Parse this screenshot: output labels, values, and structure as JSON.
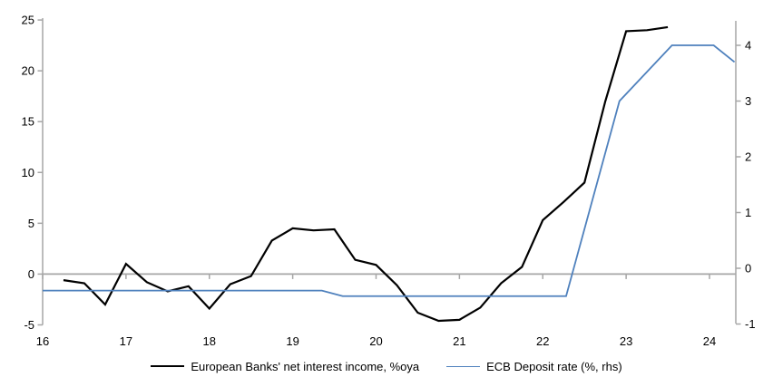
{
  "chart_data": {
    "type": "line",
    "title": "",
    "x_axis": {
      "ticks": [
        16,
        17,
        18,
        19,
        20,
        21,
        22,
        23,
        24
      ],
      "range": [
        16,
        24.31
      ]
    },
    "left_axis": {
      "ticks": [
        -5,
        0,
        5,
        10,
        15,
        20,
        25
      ],
      "range": [
        -5,
        25
      ]
    },
    "right_axis": {
      "ticks": [
        -1,
        0,
        1,
        2,
        3,
        4
      ],
      "range": [
        -1.07,
        4.45
      ]
    },
    "grid": "zero-line-only",
    "legend_position": "bottom",
    "series": [
      {
        "name": "European Banks' net interest income, %oya",
        "axis": "left",
        "color": "#000000",
        "width": 2.2,
        "x": [
          16.25,
          16.5,
          16.75,
          17.0,
          17.25,
          17.5,
          17.75,
          18.0,
          18.25,
          18.5,
          18.75,
          19.0,
          19.25,
          19.5,
          19.75,
          20.0,
          20.25,
          20.5,
          20.75,
          21.0,
          21.25,
          21.5,
          21.75,
          22.0,
          22.25,
          22.5,
          22.75,
          23.0,
          23.25,
          23.5
        ],
        "values": [
          -0.6,
          -0.9,
          -3.0,
          1.0,
          -0.8,
          -1.7,
          -1.2,
          -3.4,
          -1.0,
          -0.2,
          3.3,
          4.5,
          4.3,
          4.4,
          1.4,
          0.9,
          -1.1,
          -3.8,
          -4.6,
          -4.5,
          -3.3,
          -0.9,
          0.7,
          5.3,
          7.1,
          9.0,
          17.0,
          23.9,
          24.0,
          24.3
        ]
      },
      {
        "name": "ECB Deposit rate (%, rhs)",
        "axis": "right",
        "color": "#4f81bd",
        "width": 1.8,
        "x": [
          16.0,
          19.35,
          19.6,
          22.28,
          22.92,
          23.55,
          24.05,
          24.3
        ],
        "values": [
          -0.4,
          -0.4,
          -0.5,
          -0.5,
          3.0,
          4.0,
          4.0,
          3.7
        ]
      }
    ]
  },
  "colors": {
    "axis_gray": "#a6a6a6",
    "background": "#ffffff",
    "label_text": "#000000"
  }
}
